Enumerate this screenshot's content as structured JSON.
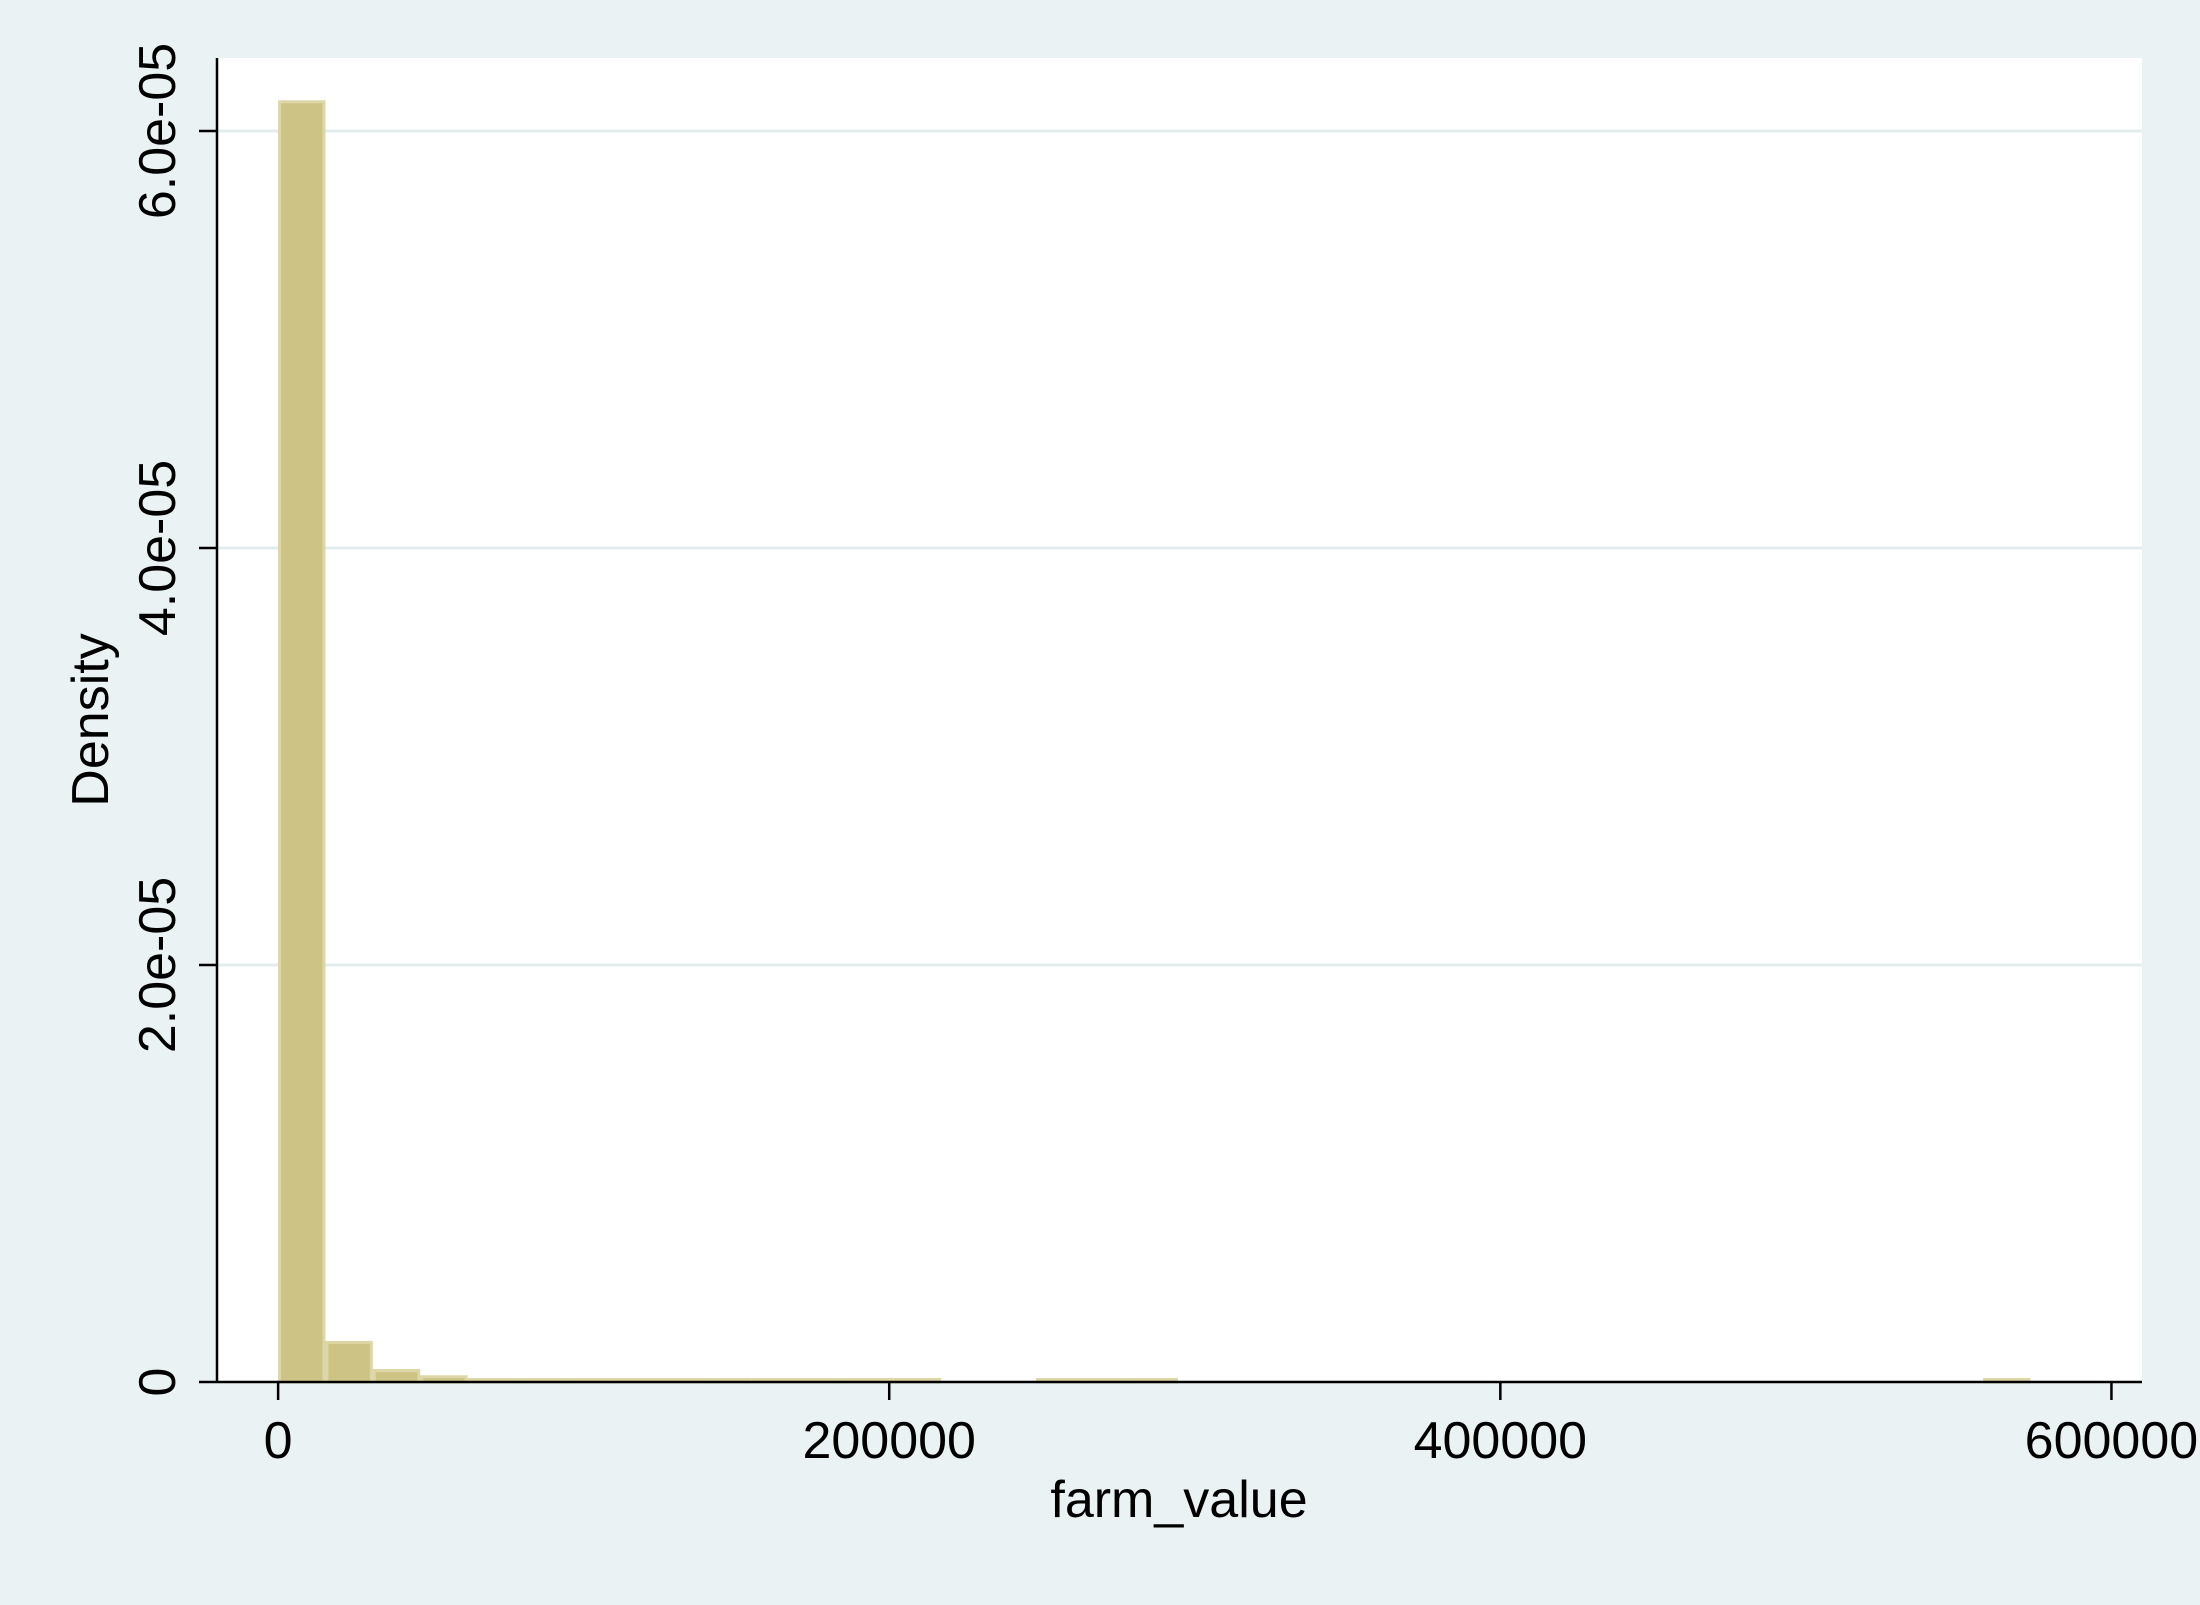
{
  "colors": {
    "background": "#eaf2f3",
    "plot_area": "#ffffff",
    "gridline": "#e3ecec",
    "bar_fill": "#cdc385",
    "bar_outline": "#ddd6a6",
    "axis": "#000000"
  },
  "chart_data": {
    "type": "bar",
    "subtype": "histogram",
    "title": "",
    "xlabel": "farm_value",
    "ylabel": "Density",
    "xlim": [
      -20000,
      610000
    ],
    "ylim": [
      0,
      6.35e-05
    ],
    "grid": "horizontal",
    "legend": "none",
    "x_ticks": [
      {
        "value": 0,
        "label": "0"
      },
      {
        "value": 200000,
        "label": "200000"
      },
      {
        "value": 400000,
        "label": "400000"
      },
      {
        "value": 600000,
        "label": "600000"
      }
    ],
    "y_ticks": [
      {
        "value": 0,
        "label": "0"
      },
      {
        "value": 2e-05,
        "label": "2.0e-05"
      },
      {
        "value": 4e-05,
        "label": "4.0e-05"
      },
      {
        "value": 6e-05,
        "label": "6.0e-05"
      }
    ],
    "bin_width": 15500,
    "bins": [
      {
        "x0": 0,
        "x1": 15500,
        "density": 6.14e-05
      },
      {
        "x0": 15500,
        "x1": 31000,
        "density": 1.9e-06
      },
      {
        "x0": 31000,
        "x1": 46500,
        "density": 5.5e-07
      },
      {
        "x0": 46500,
        "x1": 62000,
        "density": 2.5e-07
      },
      {
        "x0": 62000,
        "x1": 77500,
        "density": 1.2e-07
      },
      {
        "x0": 77500,
        "x1": 93000,
        "density": 1e-07
      },
      {
        "x0": 93000,
        "x1": 108500,
        "density": 9e-08
      },
      {
        "x0": 108500,
        "x1": 124000,
        "density": 8e-08
      },
      {
        "x0": 124000,
        "x1": 139500,
        "density": 8e-08
      },
      {
        "x0": 139500,
        "x1": 155000,
        "density": 7e-08
      },
      {
        "x0": 155000,
        "x1": 170500,
        "density": 7e-08
      },
      {
        "x0": 170500,
        "x1": 186000,
        "density": 7e-08
      },
      {
        "x0": 186000,
        "x1": 201500,
        "density": 7e-08
      },
      {
        "x0": 201500,
        "x1": 217000,
        "density": 7e-08
      },
      {
        "x0": 248000,
        "x1": 263500,
        "density": 7e-08
      },
      {
        "x0": 263500,
        "x1": 279000,
        "density": 7e-08
      },
      {
        "x0": 279000,
        "x1": 294500,
        "density": 7e-08
      },
      {
        "x0": 558000,
        "x1": 573500,
        "density": 7e-08
      }
    ]
  }
}
